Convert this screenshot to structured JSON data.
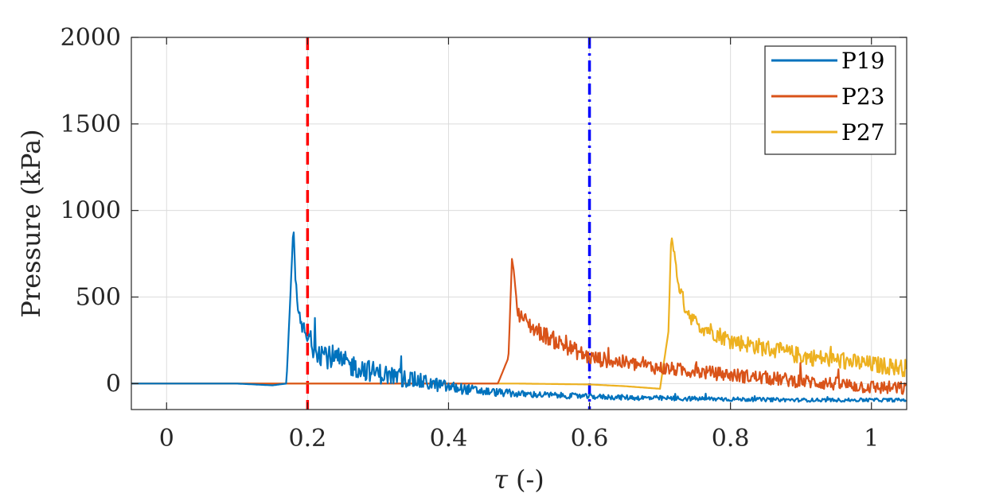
{
  "chart_data": {
    "type": "line",
    "xlabel_symbol": "τ",
    "xlabel_unit": "(-)",
    "ylabel": "Pressure (kPa)",
    "xlim": [
      -0.05,
      1.05
    ],
    "ylim": [
      -150,
      2000
    ],
    "grid": true,
    "legend_position": "top-right",
    "x_ticks": [
      0,
      0.2,
      0.4,
      0.6,
      0.8,
      1
    ],
    "x_tick_labels": [
      "0",
      "0.2",
      "0.4",
      "0.6",
      "0.8",
      "1"
    ],
    "y_ticks": [
      0,
      500,
      1000,
      1500,
      2000
    ],
    "y_tick_labels": [
      "0",
      "500",
      "1000",
      "1500",
      "2000"
    ],
    "reference_lines": [
      {
        "x": 0.2,
        "color": "#ff0000",
        "style": "dashed"
      },
      {
        "x": 0.6,
        "color": "#0000ff",
        "style": "dash-dot"
      }
    ],
    "series": [
      {
        "name": "P19",
        "color": "#0072BD",
        "x": [
          -0.05,
          0.1,
          0.15,
          0.17,
          0.175,
          0.18,
          0.183,
          0.186,
          0.19,
          0.2,
          0.22,
          0.25,
          0.3,
          0.35,
          0.4,
          0.45,
          0.5,
          0.6,
          0.7,
          0.8,
          0.9,
          1.0,
          1.05
        ],
        "y": [
          0,
          0,
          -10,
          0,
          450,
          920,
          600,
          420,
          350,
          250,
          180,
          120,
          60,
          20,
          -20,
          -45,
          -60,
          -75,
          -85,
          -90,
          -95,
          -95,
          -95
        ],
        "noise": [
          0,
          0,
          0,
          0,
          0,
          0,
          30,
          40,
          50,
          70,
          80,
          70,
          60,
          50,
          35,
          25,
          20,
          15,
          15,
          12,
          10,
          10,
          10
        ]
      },
      {
        "name": "P23",
        "color": "#D95319",
        "x": [
          -0.05,
          0.3,
          0.47,
          0.485,
          0.49,
          0.493,
          0.497,
          0.5,
          0.52,
          0.55,
          0.6,
          0.7,
          0.8,
          0.9,
          1.0,
          1.05
        ],
        "y": [
          0,
          0,
          0,
          150,
          720,
          640,
          450,
          400,
          320,
          250,
          150,
          90,
          50,
          15,
          -20,
          -30
        ],
        "noise": [
          0,
          0,
          0,
          0,
          0,
          0,
          30,
          40,
          50,
          50,
          45,
          40,
          40,
          40,
          40,
          40
        ]
      },
      {
        "name": "P27",
        "color": "#EDB120",
        "x": [
          -0.05,
          0.5,
          0.6,
          0.65,
          0.7,
          0.712,
          0.716,
          0.72,
          0.725,
          0.735,
          0.75,
          0.8,
          0.9,
          1.0,
          1.05
        ],
        "y": [
          0,
          0,
          -5,
          -15,
          -30,
          300,
          860,
          760,
          600,
          450,
          350,
          250,
          160,
          110,
          90
        ],
        "noise": [
          0,
          0,
          0,
          0,
          0,
          0,
          0,
          20,
          40,
          45,
          50,
          50,
          50,
          50,
          50
        ]
      }
    ]
  }
}
